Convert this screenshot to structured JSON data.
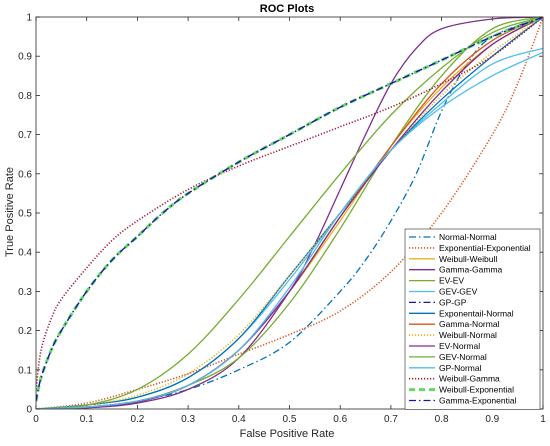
{
  "chart_data": {
    "type": "line",
    "title": "ROC Plots",
    "xlabel": "False Positive Rate",
    "ylabel": "True Positive Rate",
    "xlim": [
      0,
      1
    ],
    "ylim": [
      0,
      1
    ],
    "xticks": [
      "0",
      "0.1",
      "0.2",
      "0.3",
      "0.4",
      "0.5",
      "0.6",
      "0.7",
      "0.8",
      "0.9",
      "1"
    ],
    "yticks": [
      "0",
      "0.1",
      "0.2",
      "0.3",
      "0.4",
      "0.5",
      "0.6",
      "0.7",
      "0.8",
      "0.9",
      "1"
    ],
    "grid": true,
    "legend_position": "bottom-right",
    "series": [
      {
        "name": "Normal-Normal",
        "color": "#0072BD",
        "dash": "dashdot",
        "points": [
          [
            0,
            0
          ],
          [
            0.1,
            0.005
          ],
          [
            0.2,
            0.02
          ],
          [
            0.3,
            0.05
          ],
          [
            0.4,
            0.1
          ],
          [
            0.5,
            0.17
          ],
          [
            0.6,
            0.3
          ],
          [
            0.65,
            0.38
          ],
          [
            0.7,
            0.48
          ],
          [
            0.75,
            0.6
          ],
          [
            0.8,
            0.76
          ],
          [
            0.85,
            0.88
          ],
          [
            0.9,
            0.95
          ],
          [
            1,
            1
          ]
        ]
      },
      {
        "name": "Exponential-Exponential",
        "color": "#D95319",
        "dash": "dotted",
        "points": [
          [
            0,
            0
          ],
          [
            0.1,
            0.015
          ],
          [
            0.2,
            0.05
          ],
          [
            0.3,
            0.09
          ],
          [
            0.4,
            0.14
          ],
          [
            0.5,
            0.19
          ],
          [
            0.6,
            0.25
          ],
          [
            0.7,
            0.35
          ],
          [
            0.8,
            0.5
          ],
          [
            0.9,
            0.7
          ],
          [
            0.95,
            0.83
          ],
          [
            1,
            1
          ]
        ]
      },
      {
        "name": "Weibull-Weibull",
        "color": "#EDB120",
        "dash": "solid",
        "points": [
          [
            0,
            0
          ],
          [
            0.1,
            0.005
          ],
          [
            0.2,
            0.02
          ],
          [
            0.3,
            0.06
          ],
          [
            0.4,
            0.15
          ],
          [
            0.5,
            0.3
          ],
          [
            0.6,
            0.48
          ],
          [
            0.7,
            0.67
          ],
          [
            0.8,
            0.82
          ],
          [
            0.9,
            0.93
          ],
          [
            1,
            1
          ]
        ]
      },
      {
        "name": "Gamma-Gamma",
        "color": "#7E2F8E",
        "dash": "solid",
        "points": [
          [
            0,
            0
          ],
          [
            0.1,
            0.003
          ],
          [
            0.2,
            0.015
          ],
          [
            0.3,
            0.05
          ],
          [
            0.4,
            0.13
          ],
          [
            0.5,
            0.3
          ],
          [
            0.55,
            0.42
          ],
          [
            0.6,
            0.56
          ],
          [
            0.65,
            0.7
          ],
          [
            0.7,
            0.83
          ],
          [
            0.75,
            0.92
          ],
          [
            0.8,
            0.97
          ],
          [
            0.9,
            0.995
          ],
          [
            1,
            1
          ]
        ]
      },
      {
        "name": "EV-EV",
        "color": "#77AC30",
        "dash": "solid",
        "points": [
          [
            0,
            0
          ],
          [
            0.1,
            0.005
          ],
          [
            0.2,
            0.02
          ],
          [
            0.3,
            0.06
          ],
          [
            0.4,
            0.13
          ],
          [
            0.5,
            0.27
          ],
          [
            0.6,
            0.46
          ],
          [
            0.7,
            0.67
          ],
          [
            0.8,
            0.85
          ],
          [
            0.9,
            0.97
          ],
          [
            1,
            1
          ]
        ]
      },
      {
        "name": "GEV-GEV",
        "color": "#4DBEEE",
        "dash": "solid",
        "points": [
          [
            0,
            0
          ],
          [
            0.1,
            0.01
          ],
          [
            0.2,
            0.03
          ],
          [
            0.3,
            0.08
          ],
          [
            0.4,
            0.18
          ],
          [
            0.5,
            0.33
          ],
          [
            0.6,
            0.5
          ],
          [
            0.7,
            0.66
          ],
          [
            0.8,
            0.78
          ],
          [
            0.9,
            0.88
          ],
          [
            1,
            0.92
          ]
        ]
      },
      {
        "name": "GP-GP",
        "color": "#1515B0",
        "dash": "dashdot",
        "points": [
          [
            0,
            0.02
          ],
          [
            0.01,
            0.08
          ],
          [
            0.03,
            0.15
          ],
          [
            0.05,
            0.2
          ],
          [
            0.1,
            0.3
          ],
          [
            0.15,
            0.38
          ],
          [
            0.2,
            0.44
          ],
          [
            0.25,
            0.5
          ],
          [
            0.3,
            0.55
          ],
          [
            0.4,
            0.63
          ],
          [
            0.5,
            0.7
          ],
          [
            0.6,
            0.77
          ],
          [
            0.7,
            0.83
          ],
          [
            0.8,
            0.89
          ],
          [
            0.9,
            0.95
          ],
          [
            1,
            1
          ]
        ]
      },
      {
        "name": "Exponentail-Normal",
        "color": "#0072BD",
        "dash": "solid",
        "points": [
          [
            0,
            0
          ],
          [
            0.1,
            0.01
          ],
          [
            0.2,
            0.03
          ],
          [
            0.3,
            0.08
          ],
          [
            0.4,
            0.18
          ],
          [
            0.5,
            0.34
          ],
          [
            0.6,
            0.5
          ],
          [
            0.7,
            0.66
          ],
          [
            0.8,
            0.79
          ],
          [
            0.9,
            0.9
          ],
          [
            1,
            1
          ]
        ]
      },
      {
        "name": "Gamma-Normal",
        "color": "#D95319",
        "dash": "solid",
        "points": [
          [
            0,
            0
          ],
          [
            0.1,
            0.005
          ],
          [
            0.2,
            0.02
          ],
          [
            0.3,
            0.06
          ],
          [
            0.4,
            0.15
          ],
          [
            0.5,
            0.3
          ],
          [
            0.6,
            0.49
          ],
          [
            0.7,
            0.67
          ],
          [
            0.8,
            0.83
          ],
          [
            0.9,
            0.94
          ],
          [
            1,
            1
          ]
        ]
      },
      {
        "name": "Weibull-Normal",
        "color": "#EDB120",
        "dash": "dotted",
        "points": [
          [
            0,
            0
          ],
          [
            0.1,
            0.01
          ],
          [
            0.2,
            0.035
          ],
          [
            0.3,
            0.09
          ],
          [
            0.4,
            0.19
          ],
          [
            0.5,
            0.34
          ],
          [
            0.6,
            0.5
          ],
          [
            0.7,
            0.66
          ],
          [
            0.8,
            0.8
          ],
          [
            0.9,
            0.91
          ],
          [
            1,
            1
          ]
        ]
      },
      {
        "name": "EV-Normal",
        "color": "#7E2F8E",
        "dash": "solid",
        "points": [
          [
            0,
            0
          ],
          [
            0.1,
            0.004
          ],
          [
            0.2,
            0.018
          ],
          [
            0.3,
            0.06
          ],
          [
            0.4,
            0.15
          ],
          [
            0.5,
            0.3
          ],
          [
            0.6,
            0.49
          ],
          [
            0.7,
            0.66
          ],
          [
            0.8,
            0.81
          ],
          [
            0.9,
            0.93
          ],
          [
            1,
            1
          ]
        ]
      },
      {
        "name": "GEV-Normal",
        "color": "#77AC30",
        "dash": "solid",
        "points": [
          [
            0,
            0
          ],
          [
            0.1,
            0.01
          ],
          [
            0.2,
            0.05
          ],
          [
            0.3,
            0.14
          ],
          [
            0.4,
            0.28
          ],
          [
            0.5,
            0.44
          ],
          [
            0.6,
            0.6
          ],
          [
            0.7,
            0.75
          ],
          [
            0.8,
            0.87
          ],
          [
            0.9,
            0.96
          ],
          [
            1,
            1
          ]
        ]
      },
      {
        "name": "GP-Normal",
        "color": "#4DBEEE",
        "dash": "solid",
        "points": [
          [
            0,
            0
          ],
          [
            0.1,
            0.005
          ],
          [
            0.2,
            0.02
          ],
          [
            0.3,
            0.06
          ],
          [
            0.4,
            0.15
          ],
          [
            0.5,
            0.31
          ],
          [
            0.6,
            0.5
          ],
          [
            0.7,
            0.66
          ],
          [
            0.8,
            0.77
          ],
          [
            0.9,
            0.85
          ],
          [
            1,
            0.91
          ]
        ]
      },
      {
        "name": "Weibull-Gamma",
        "color": "#A2142F",
        "dash": "dotted",
        "points": [
          [
            0,
            0.05
          ],
          [
            0.01,
            0.15
          ],
          [
            0.03,
            0.23
          ],
          [
            0.05,
            0.28
          ],
          [
            0.1,
            0.36
          ],
          [
            0.15,
            0.43
          ],
          [
            0.2,
            0.48
          ],
          [
            0.3,
            0.56
          ],
          [
            0.4,
            0.62
          ],
          [
            0.5,
            0.67
          ],
          [
            0.6,
            0.72
          ],
          [
            0.7,
            0.77
          ],
          [
            0.8,
            0.83
          ],
          [
            0.9,
            0.9
          ],
          [
            1,
            1
          ]
        ]
      },
      {
        "name": "Weibull-Exponential",
        "color": "#66D866",
        "dash": "dashed",
        "points": [
          [
            0,
            0.02
          ],
          [
            0.01,
            0.08
          ],
          [
            0.03,
            0.15
          ],
          [
            0.05,
            0.2
          ],
          [
            0.1,
            0.3
          ],
          [
            0.15,
            0.38
          ],
          [
            0.2,
            0.44
          ],
          [
            0.25,
            0.5
          ],
          [
            0.3,
            0.55
          ],
          [
            0.4,
            0.63
          ],
          [
            0.5,
            0.7
          ],
          [
            0.6,
            0.77
          ],
          [
            0.7,
            0.83
          ],
          [
            0.8,
            0.89
          ],
          [
            0.9,
            0.95
          ],
          [
            1,
            1
          ]
        ]
      },
      {
        "name": "Gamma-Exponential",
        "color": "#1515B0",
        "dash": "dashdot",
        "points": [
          [
            0,
            0.02
          ],
          [
            0.01,
            0.08
          ],
          [
            0.03,
            0.15
          ],
          [
            0.05,
            0.2
          ],
          [
            0.1,
            0.3
          ],
          [
            0.15,
            0.38
          ],
          [
            0.2,
            0.44
          ],
          [
            0.25,
            0.5
          ],
          [
            0.3,
            0.55
          ],
          [
            0.4,
            0.63
          ],
          [
            0.5,
            0.7
          ],
          [
            0.6,
            0.77
          ],
          [
            0.7,
            0.83
          ],
          [
            0.8,
            0.89
          ],
          [
            0.9,
            0.95
          ],
          [
            1,
            1
          ]
        ]
      }
    ]
  }
}
